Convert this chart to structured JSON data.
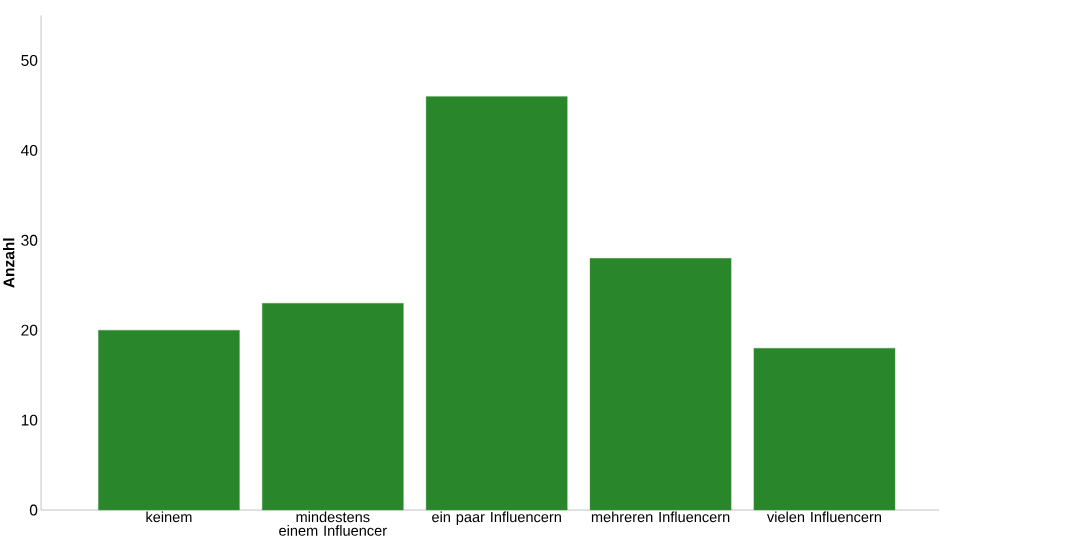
{
  "chart_data": {
    "type": "bar",
    "ylabel": "Anzahl",
    "categories": [
      "keinem",
      "mindestens einem Influencer",
      "ein paar Influencern",
      "mehreren Influencern",
      "vielen Influencern"
    ],
    "values": [
      20,
      23,
      46,
      28,
      18
    ],
    "color": "#2a862a",
    "ylim": [
      0,
      55
    ],
    "yticks": [
      0,
      10,
      20,
      30,
      40,
      50
    ],
    "grid": false
  }
}
